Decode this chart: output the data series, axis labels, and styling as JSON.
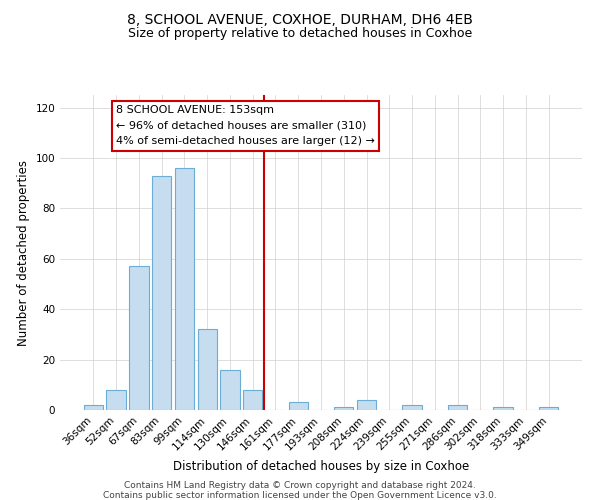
{
  "title": "8, SCHOOL AVENUE, COXHOE, DURHAM, DH6 4EB",
  "subtitle": "Size of property relative to detached houses in Coxhoe",
  "xlabel": "Distribution of detached houses by size in Coxhoe",
  "ylabel": "Number of detached properties",
  "bar_labels": [
    "36sqm",
    "52sqm",
    "67sqm",
    "83sqm",
    "99sqm",
    "114sqm",
    "130sqm",
    "146sqm",
    "161sqm",
    "177sqm",
    "193sqm",
    "208sqm",
    "224sqm",
    "239sqm",
    "255sqm",
    "271sqm",
    "286sqm",
    "302sqm",
    "318sqm",
    "333sqm",
    "349sqm"
  ],
  "bar_values": [
    2,
    8,
    57,
    93,
    96,
    32,
    16,
    8,
    0,
    3,
    0,
    1,
    4,
    0,
    2,
    0,
    2,
    0,
    1,
    0,
    1
  ],
  "bar_color": "#c5ddef",
  "bar_edge_color": "#6aaed6",
  "vline_color": "#cc0000",
  "annotation_text": "8 SCHOOL AVENUE: 153sqm\n← 96% of detached houses are smaller (310)\n4% of semi-detached houses are larger (12) →",
  "annotation_box_color": "#ffffff",
  "annotation_box_edge": "#cc0000",
  "ylim": [
    0,
    125
  ],
  "yticks": [
    0,
    20,
    40,
    60,
    80,
    100,
    120
  ],
  "footer1": "Contains HM Land Registry data © Crown copyright and database right 2024.",
  "footer2": "Contains public sector information licensed under the Open Government Licence v3.0.",
  "title_fontsize": 10,
  "subtitle_fontsize": 9,
  "axis_label_fontsize": 8.5,
  "tick_fontsize": 7.5,
  "annotation_fontsize": 8,
  "footer_fontsize": 6.5
}
